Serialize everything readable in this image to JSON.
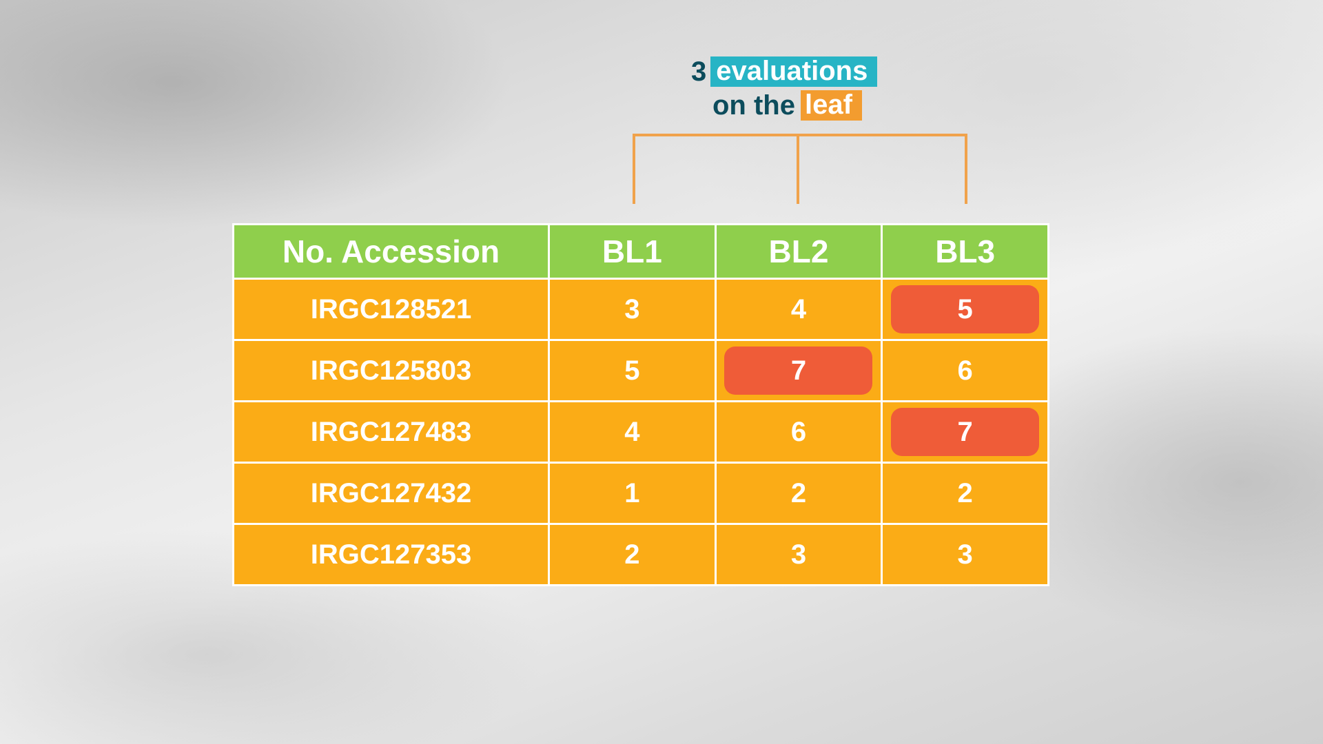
{
  "title": {
    "line1_number": "3",
    "line1_highlight": "evaluations",
    "line2_text": "on the",
    "line2_highlight": "leaf"
  },
  "colors": {
    "header_green": "#8fcf4c",
    "cell_orange": "#fbac16",
    "highlight_red": "#ef5c38",
    "title_teal": "#27b4c5",
    "title_orange": "#f39c2f",
    "title_text": "#0c4c5c",
    "bracket": "#f0a24b"
  },
  "table": {
    "headers": [
      "No. Accession",
      "BL1",
      "BL2",
      "BL3"
    ],
    "rows": [
      {
        "accession": "IRGC128521",
        "values": [
          "3",
          "4",
          "5"
        ],
        "highlighted": [
          "BL3"
        ]
      },
      {
        "accession": "IRGC125803",
        "values": [
          "5",
          "7",
          "6"
        ],
        "highlighted": [
          "BL2"
        ]
      },
      {
        "accession": "IRGC127483",
        "values": [
          "4",
          "6",
          "7"
        ],
        "highlighted": [
          "BL3"
        ]
      },
      {
        "accession": "IRGC127432",
        "values": [
          "1",
          "2",
          "2"
        ],
        "highlighted": []
      },
      {
        "accession": "IRGC127353",
        "values": [
          "2",
          "3",
          "3"
        ],
        "highlighted": []
      }
    ]
  }
}
